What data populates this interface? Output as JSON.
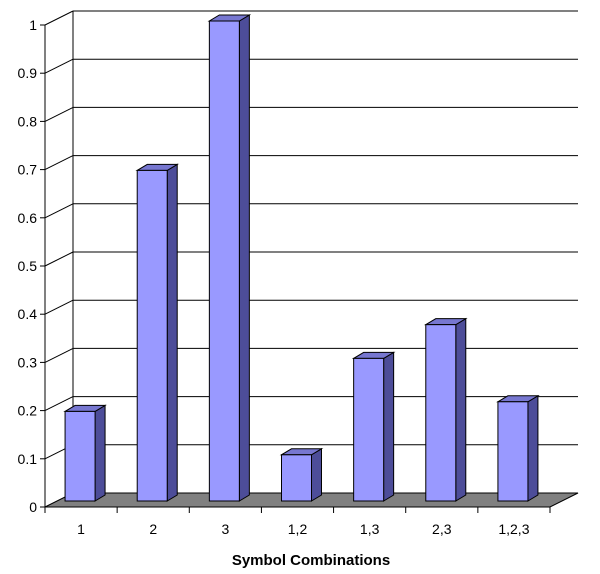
{
  "chart_data": {
    "type": "bar",
    "categories": [
      "1",
      "2",
      "3",
      "1,2",
      "1,3",
      "2,3",
      "1,2,3"
    ],
    "values": [
      0.19,
      0.69,
      1.0,
      0.1,
      0.3,
      0.37,
      0.21
    ],
    "title": "",
    "xlabel": "Symbol Combinations",
    "ylabel": "",
    "ylim": [
      0,
      1
    ],
    "yticks": [
      "0",
      "0.1",
      "0.2",
      "0.3",
      "0.4",
      "0.5",
      "0.6",
      "0.7",
      "0.8",
      "0.9",
      "1"
    ],
    "grid": true,
    "style": "3d-column",
    "colors": {
      "bar_front": "#9999FF",
      "bar_side": "#4D4D99",
      "bar_top": "#7777D0",
      "floor": "#808080",
      "grid": "#000000",
      "background": "#FFFFFF"
    }
  }
}
